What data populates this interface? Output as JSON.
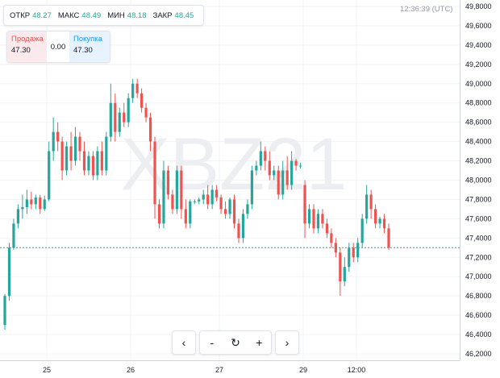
{
  "ohlc": {
    "open_label": "ОТКР",
    "open_value": "48.27",
    "high_label": "МАКС",
    "high_value": "48.49",
    "low_label": "МИН",
    "low_value": "48.18",
    "close_label": "ЗАКР",
    "close_value": "48.45"
  },
  "trade": {
    "sell_label": "Продажа",
    "sell_price": "47.30",
    "spread": "0.00",
    "buy_label": "Покупка",
    "buy_price": "47.30"
  },
  "clock": "12:36:39 (UTC)",
  "watermark": "XBZ21",
  "controls": {
    "prev": "‹",
    "zoom_out": "-",
    "reset": "↻",
    "zoom_in": "+",
    "next": "›"
  },
  "colors": {
    "up": "#26a69a",
    "down": "#ef5350",
    "grid": "#f0f3fa",
    "price_line": "#26a69a"
  },
  "chart_data": {
    "type": "candlestick",
    "y_ticks": [
      "49,8000",
      "49,6000",
      "49,4000",
      "49,2000",
      "49,0000",
      "48,8000",
      "48,6000",
      "48,4000",
      "48,2000",
      "48,0000",
      "47,8000",
      "47,6000",
      "47,4000",
      "47,2000",
      "47,0000",
      "46,8000",
      "46,6000",
      "46,4000",
      "46,2000"
    ],
    "y_range": [
      46.15,
      49.85
    ],
    "x_ticks": [
      "25",
      "26",
      "27",
      "29",
      "12:00"
    ],
    "last_price": 47.3,
    "candles": [
      [
        46.5,
        46.8,
        46.45,
        46.82
      ],
      [
        46.8,
        47.3,
        46.75,
        47.35
      ],
      [
        47.3,
        47.55,
        47.28,
        47.6
      ],
      [
        47.55,
        47.7,
        47.5,
        47.75
      ],
      [
        47.7,
        47.72,
        47.6,
        47.85
      ],
      [
        47.72,
        47.8,
        47.65,
        47.9
      ],
      [
        47.8,
        47.75,
        47.7,
        47.88
      ],
      [
        47.75,
        47.82,
        47.7,
        47.85
      ],
      [
        47.82,
        47.7,
        47.65,
        47.85
      ],
      [
        47.7,
        47.8,
        47.68,
        47.84
      ],
      [
        47.8,
        48.3,
        47.78,
        48.4
      ],
      [
        48.3,
        48.5,
        48.2,
        48.65
      ],
      [
        48.5,
        48.4,
        48.3,
        48.6
      ],
      [
        48.4,
        48.1,
        48.0,
        48.45
      ],
      [
        48.1,
        48.35,
        48.05,
        48.4
      ],
      [
        48.35,
        48.2,
        48.1,
        48.5
      ],
      [
        48.2,
        48.45,
        48.15,
        48.55
      ],
      [
        48.45,
        48.3,
        48.2,
        48.5
      ],
      [
        48.3,
        48.1,
        48.05,
        48.4
      ],
      [
        48.1,
        48.25,
        48.05,
        48.3
      ],
      [
        48.25,
        48.05,
        48.0,
        48.3
      ],
      [
        48.05,
        48.3,
        48.0,
        48.35
      ],
      [
        48.3,
        48.1,
        48.05,
        48.4
      ],
      [
        48.1,
        48.45,
        48.05,
        48.5
      ],
      [
        48.45,
        48.8,
        48.4,
        49.0
      ],
      [
        48.8,
        48.5,
        48.4,
        48.9
      ],
      [
        48.5,
        48.7,
        48.45,
        48.75
      ],
      [
        48.7,
        48.6,
        48.55,
        48.8
      ],
      [
        48.6,
        48.85,
        48.55,
        48.9
      ],
      [
        48.85,
        49.0,
        48.8,
        49.05
      ],
      [
        49.0,
        48.9,
        48.85,
        49.05
      ],
      [
        48.9,
        48.75,
        48.7,
        48.95
      ],
      [
        48.75,
        48.65,
        48.6,
        48.8
      ],
      [
        48.65,
        48.4,
        48.3,
        48.7
      ],
      [
        48.4,
        47.75,
        47.6,
        48.45
      ],
      [
        47.75,
        47.55,
        47.5,
        47.8
      ],
      [
        47.55,
        48.1,
        47.5,
        48.2
      ],
      [
        48.1,
        47.85,
        47.8,
        48.15
      ],
      [
        47.85,
        47.7,
        47.65,
        47.9
      ],
      [
        47.7,
        48.1,
        47.65,
        48.15
      ],
      [
        48.1,
        47.7,
        47.6,
        48.15
      ],
      [
        47.7,
        47.55,
        47.5,
        47.8
      ],
      [
        47.55,
        47.78,
        47.5,
        47.8
      ],
      [
        47.78,
        47.78,
        47.75,
        47.8
      ],
      [
        47.78,
        47.8,
        47.75,
        47.82
      ],
      [
        47.8,
        47.85,
        47.75,
        47.9
      ],
      [
        47.85,
        47.75,
        47.7,
        47.95
      ],
      [
        47.75,
        47.9,
        47.7,
        47.95
      ],
      [
        47.9,
        47.82,
        47.78,
        47.95
      ],
      [
        47.82,
        47.7,
        47.65,
        47.85
      ],
      [
        47.7,
        47.65,
        47.6,
        47.78
      ],
      [
        47.65,
        47.8,
        47.6,
        47.82
      ],
      [
        47.8,
        47.55,
        47.5,
        47.85
      ],
      [
        47.55,
        47.4,
        47.35,
        47.6
      ],
      [
        47.4,
        47.65,
        47.35,
        47.7
      ],
      [
        47.65,
        47.75,
        47.6,
        47.8
      ],
      [
        47.75,
        48.1,
        47.7,
        48.15
      ],
      [
        48.1,
        48.15,
        48.05,
        48.2
      ],
      [
        48.15,
        48.3,
        48.1,
        48.4
      ],
      [
        48.3,
        48.2,
        48.1,
        48.35
      ],
      [
        48.2,
        48.05,
        48.0,
        48.3
      ],
      [
        48.05,
        48.1,
        48.0,
        48.15
      ],
      [
        48.1,
        47.85,
        47.8,
        48.15
      ],
      [
        47.85,
        48.1,
        47.8,
        48.2
      ],
      [
        48.1,
        47.95,
        47.9,
        48.25
      ],
      [
        47.95,
        48.2,
        47.9,
        48.3
      ],
      [
        48.2,
        48.15,
        48.1,
        48.22
      ],
      [
        48.15,
        48.15,
        48.12,
        48.18
      ],
      [
        47.95,
        47.55,
        47.4,
        48.0
      ],
      [
        47.55,
        47.7,
        47.5,
        47.75
      ],
      [
        47.7,
        47.5,
        47.45,
        47.75
      ],
      [
        47.5,
        47.65,
        47.45,
        47.7
      ],
      [
        47.65,
        47.55,
        47.5,
        47.7
      ],
      [
        47.55,
        47.45,
        47.4,
        47.6
      ],
      [
        47.45,
        47.35,
        47.3,
        47.5
      ],
      [
        47.35,
        47.25,
        47.2,
        47.4
      ],
      [
        47.25,
        46.95,
        46.8,
        47.3
      ],
      [
        46.95,
        47.1,
        46.9,
        47.2
      ],
      [
        47.1,
        47.3,
        47.05,
        47.35
      ],
      [
        47.3,
        47.2,
        47.15,
        47.35
      ],
      [
        47.2,
        47.35,
        47.15,
        47.4
      ],
      [
        47.35,
        47.6,
        47.3,
        47.65
      ],
      [
        47.6,
        47.85,
        47.55,
        47.95
      ],
      [
        47.85,
        47.7,
        47.6,
        47.9
      ],
      [
        47.7,
        47.55,
        47.5,
        47.75
      ],
      [
        47.55,
        47.6,
        47.5,
        47.62
      ],
      [
        47.6,
        47.5,
        47.45,
        47.65
      ],
      [
        47.5,
        47.3,
        47.28,
        47.55
      ]
    ]
  }
}
